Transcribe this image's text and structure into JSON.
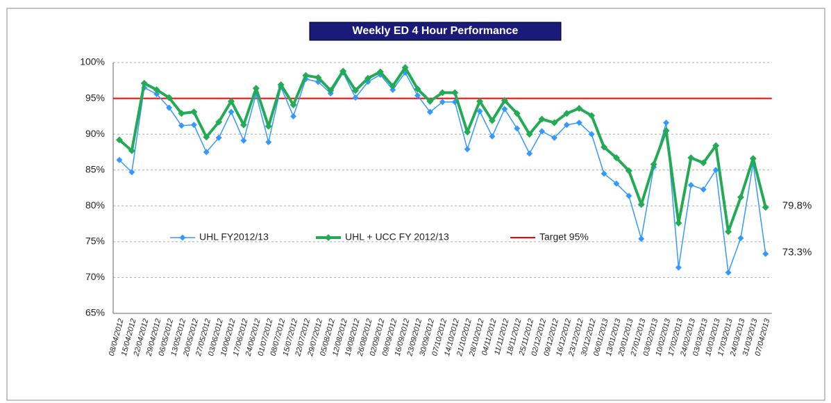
{
  "chart_data": {
    "type": "line",
    "title": "Weekly ED 4 Hour Performance",
    "categories": [
      "08/04/2012",
      "15/04/2012",
      "22/04/2012",
      "29/04/2012",
      "06/05/2012",
      "13/05/2012",
      "20/05/2012",
      "27/05/2012",
      "03/06/2012",
      "10/06/2012",
      "17/06/2012",
      "24/06/2012",
      "01/07/2012",
      "08/07/2012",
      "15/07/2012",
      "22/07/2012",
      "29/07/2012",
      "05/08/2012",
      "12/08/2012",
      "19/08/2012",
      "26/08/2012",
      "02/09/2012",
      "09/09/2012",
      "16/09/2012",
      "23/09/2012",
      "30/09/2012",
      "07/10/2012",
      "14/10/2012",
      "21/10/2012",
      "28/10/2012",
      "04/11/2012",
      "11/11/2012",
      "18/11/2012",
      "25/11/2012",
      "02/12/2012",
      "09/12/2012",
      "16/12/2012",
      "23/12/2012",
      "30/12/2012",
      "06/01/2013",
      "13/01/2013",
      "20/01/2013",
      "27/01/2013",
      "03/02/2013",
      "10/02/2013",
      "17/02/2013",
      "24/02/2013",
      "03/03/2013",
      "10/03/2013",
      "17/03/2013",
      "24/03/2013",
      "31/03/2013",
      "07/04/2013"
    ],
    "series": [
      {
        "name": "UHL FY2012/13",
        "color": "#3399ff",
        "values": [
          86.4,
          84.7,
          96.5,
          95.6,
          93.7,
          91.2,
          91.3,
          87.5,
          89.5,
          93.1,
          89.1,
          95.6,
          88.9,
          96.6,
          92.5,
          97.7,
          97.3,
          95.7,
          98.6,
          95.1,
          97.3,
          98.3,
          96.2,
          98.6,
          95.4,
          93.1,
          94.5,
          94.5,
          87.9,
          93.2,
          89.7,
          93.5,
          90.8,
          87.3,
          90.4,
          89.5,
          91.3,
          91.6,
          90.0,
          84.5,
          83.1,
          81.4,
          75.4,
          85.4,
          91.6,
          71.4,
          82.9,
          82.3,
          85.0,
          70.7,
          75.5,
          85.9,
          73.3
        ],
        "value_labels": [
          null,
          null,
          null,
          null,
          null,
          null,
          null,
          null,
          null,
          null,
          null,
          null,
          null,
          null,
          null,
          null,
          null,
          null,
          null,
          null,
          null,
          null,
          null,
          null,
          null,
          null,
          null,
          null,
          null,
          null,
          null,
          null,
          null,
          null,
          null,
          null,
          null,
          null,
          null,
          null,
          null,
          null,
          null,
          null,
          null,
          null,
          null,
          null,
          null,
          null,
          null,
          null,
          "73.3%"
        ]
      },
      {
        "name": "UHL + UCC FY 2012/13",
        "color": "#22aa55",
        "values": [
          89.2,
          87.7,
          97.1,
          96.2,
          95.1,
          92.9,
          93.1,
          89.6,
          91.7,
          94.6,
          91.3,
          96.4,
          91.1,
          96.9,
          94.1,
          98.2,
          97.9,
          96.1,
          98.8,
          96.1,
          97.8,
          98.7,
          96.7,
          99.3,
          96.3,
          94.6,
          95.8,
          95.8,
          90.3,
          94.6,
          91.9,
          94.7,
          92.9,
          90.0,
          92.1,
          91.6,
          92.9,
          93.6,
          92.6,
          88.2,
          86.7,
          84.9,
          80.2,
          85.8,
          90.5,
          77.6,
          86.7,
          86.0,
          88.4,
          76.4,
          81.2,
          86.6,
          79.8
        ],
        "value_labels": [
          null,
          null,
          null,
          null,
          null,
          null,
          null,
          null,
          null,
          null,
          null,
          null,
          null,
          null,
          null,
          null,
          null,
          null,
          null,
          null,
          null,
          null,
          null,
          null,
          null,
          null,
          null,
          null,
          null,
          null,
          null,
          null,
          null,
          null,
          null,
          null,
          null,
          null,
          null,
          null,
          null,
          null,
          null,
          null,
          null,
          null,
          null,
          null,
          null,
          null,
          null,
          null,
          "79.8%"
        ]
      }
    ],
    "target": {
      "name": "Target 95%",
      "value": 95,
      "color": "#ff0000"
    },
    "ylim": [
      65,
      100
    ],
    "yticks": [
      {
        "value": 65,
        "label": "65%"
      },
      {
        "value": 70,
        "label": "70%"
      },
      {
        "value": 75,
        "label": "75%"
      },
      {
        "value": 80,
        "label": "80%"
      },
      {
        "value": 85,
        "label": "85%"
      },
      {
        "value": 90,
        "label": "90%"
      },
      {
        "value": 95,
        "label": "95%"
      },
      {
        "value": 100,
        "label": "100%"
      }
    ],
    "grid": true
  }
}
